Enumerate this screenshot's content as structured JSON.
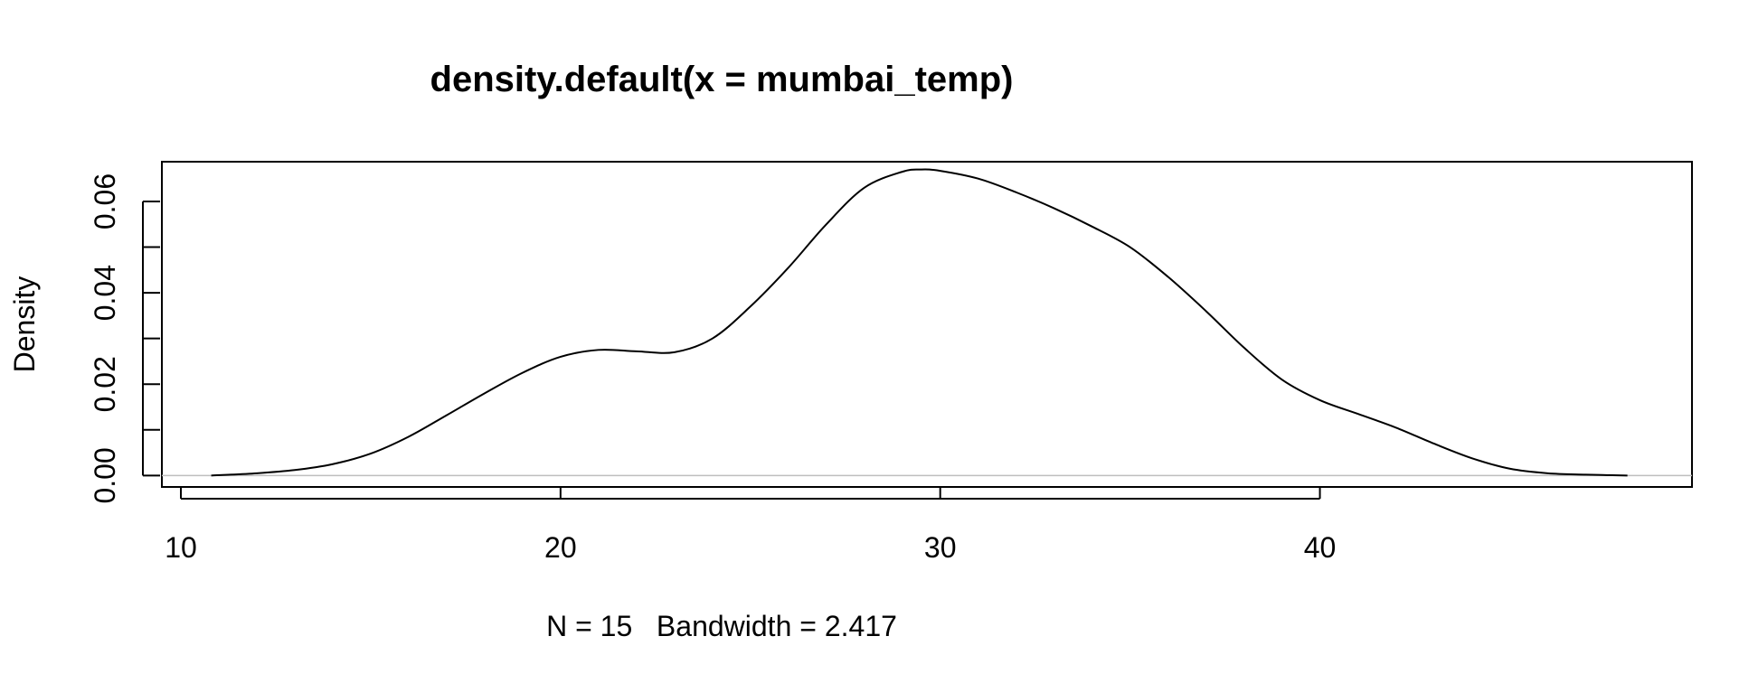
{
  "chart_data": {
    "type": "line",
    "title": "density.default(x = mumbai_temp)",
    "xlabel": "N = 15   Bandwidth = 2.417",
    "ylabel": "Density",
    "xlim": [
      9.5,
      49.8
    ],
    "ylim": [
      -0.0025,
      0.0687
    ],
    "x_ticks": [
      "10",
      "20",
      "30",
      "40"
    ],
    "y_ticks": [
      "0.00",
      "0.02",
      "0.04",
      "0.06"
    ],
    "y_minor_ticks": [
      0.01,
      0.03,
      0.05
    ],
    "grid": false,
    "baseline": 0,
    "line_color": "#000000",
    "baseline_color": "#bebebe",
    "series": [
      {
        "x": [
          10.8,
          12,
          13,
          14,
          15,
          16,
          17,
          18,
          19,
          20,
          21,
          22,
          23,
          24,
          25,
          26,
          27,
          28,
          29,
          29.5,
          30,
          31,
          32,
          33,
          34,
          35,
          36,
          37,
          38,
          39,
          40,
          41,
          42,
          43,
          44,
          45,
          46,
          47,
          48.1
        ],
        "y": [
          0.0,
          0.0005,
          0.0012,
          0.0025,
          0.0048,
          0.0085,
          0.0132,
          0.018,
          0.0225,
          0.026,
          0.0275,
          0.0272,
          0.027,
          0.03,
          0.037,
          0.0455,
          0.055,
          0.063,
          0.0665,
          0.067,
          0.0667,
          0.065,
          0.062,
          0.0585,
          0.0545,
          0.05,
          0.0435,
          0.036,
          0.028,
          0.021,
          0.0165,
          0.0135,
          0.0105,
          0.007,
          0.0038,
          0.0015,
          0.0005,
          0.0002,
          0.0
        ]
      }
    ]
  }
}
